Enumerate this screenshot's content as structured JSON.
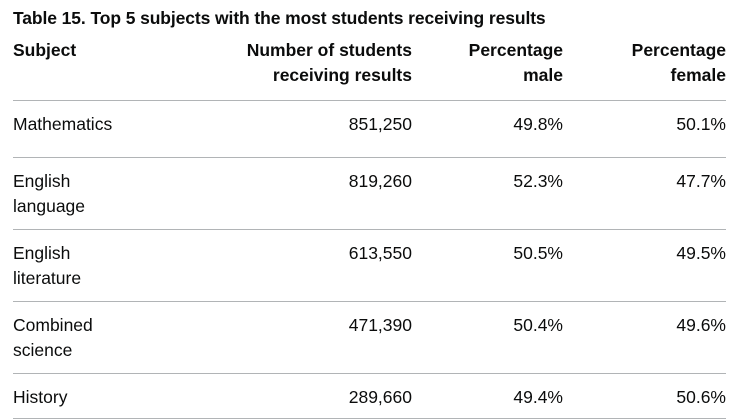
{
  "caption": "Table 15. Top 5 subjects with the most students receiving results",
  "columns": {
    "subject": "Subject",
    "students": "Number of students receiving results",
    "male": "Percentage male",
    "female": "Percentage female"
  },
  "header_lines": {
    "students_1": "Number of students",
    "students_2": "receiving results",
    "male_1": "Percentage",
    "male_2": "male",
    "female_1": "Percentage",
    "female_2": "female"
  },
  "rows": [
    {
      "subject": "Mathematics",
      "students": "851,250",
      "male": "49.8%",
      "female": "50.1%"
    },
    {
      "subject": "English language",
      "students": "819,260",
      "male": "52.3%",
      "female": "47.7%"
    },
    {
      "subject": "English literature",
      "students": "613,550",
      "male": "50.5%",
      "female": "49.5%"
    },
    {
      "subject": "Combined science",
      "students": "471,390",
      "male": "50.4%",
      "female": "49.6%"
    },
    {
      "subject": "History",
      "students": "289,660",
      "male": "49.4%",
      "female": "50.6%"
    }
  ]
}
